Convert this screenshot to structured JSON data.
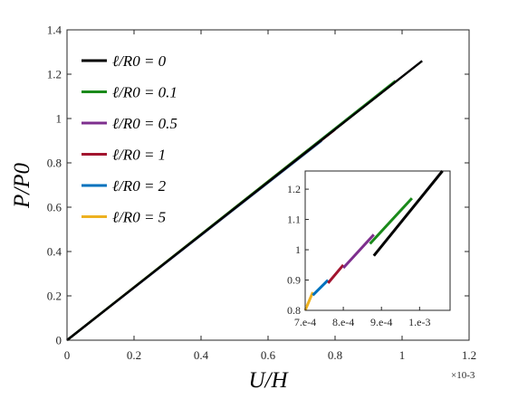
{
  "chart_data": [
    {
      "type": "line",
      "title": "",
      "xlabel": "U/H",
      "ylabel": "P/P0",
      "x_multiplier": "×10-3",
      "xlim": [
        0,
        1.2
      ],
      "ylim": [
        0,
        1.4
      ],
      "x_ticks": [
        "0",
        "0.2",
        "0.4",
        "0.6",
        "0.8",
        "1",
        "1.2"
      ],
      "y_ticks": [
        "0",
        "0.2",
        "0.4",
        "0.6",
        "0.8",
        "1",
        "1.2",
        "1.4"
      ],
      "grid": false,
      "legend_position": "top-left",
      "series": [
        {
          "name": "ℓ/R0 = 0",
          "color": "#000000",
          "x": [
            0,
            1.06
          ],
          "y": [
            0,
            1.26
          ]
        },
        {
          "name": "ℓ/R0 = 0.1",
          "color": "#1a8a1a",
          "x": [
            0,
            0.98
          ],
          "y": [
            0,
            1.17
          ]
        },
        {
          "name": "ℓ/R0 = 0.5",
          "color": "#7e2f8e",
          "x": [
            0,
            0.88
          ],
          "y": [
            0,
            1.05
          ]
        },
        {
          "name": "ℓ/R0 = 1",
          "color": "#a2142f",
          "x": [
            0,
            0.8
          ],
          "y": [
            0,
            0.95
          ]
        },
        {
          "name": "ℓ/R0 = 2",
          "color": "#0072bd",
          "x": [
            0,
            0.76
          ],
          "y": [
            0,
            0.9
          ]
        },
        {
          "name": "ℓ/R0 = 5",
          "color": "#edb120",
          "x": [
            0,
            0.72
          ],
          "y": [
            0,
            0.86
          ]
        }
      ]
    },
    {
      "type": "line",
      "title": "",
      "xlim": [
        0.0007,
        0.00108
      ],
      "ylim": [
        0.8,
        1.26
      ],
      "x_ticks": [
        "7.e-4",
        "8.e-4",
        "9.e-4",
        "1.e-3"
      ],
      "y_ticks": [
        "0.8",
        "0.9",
        "1",
        "1.1",
        "1.2"
      ],
      "grid": false,
      "segments": [
        {
          "color": "#edb120",
          "x": [
            0.0007,
            0.00072
          ],
          "y": [
            0.8,
            0.86
          ]
        },
        {
          "color": "#0072bd",
          "x": [
            0.00072,
            0.00076
          ],
          "y": [
            0.85,
            0.9
          ]
        },
        {
          "color": "#a2142f",
          "x": [
            0.00076,
            0.0008
          ],
          "y": [
            0.89,
            0.95
          ]
        },
        {
          "color": "#7e2f8e",
          "x": [
            0.0008,
            0.00088
          ],
          "y": [
            0.94,
            1.05
          ]
        },
        {
          "color": "#1a8a1a",
          "x": [
            0.00087,
            0.00098
          ],
          "y": [
            1.02,
            1.17
          ]
        },
        {
          "color": "#000000",
          "x": [
            0.00088,
            0.00106
          ],
          "y": [
            0.98,
            1.26
          ]
        }
      ]
    }
  ]
}
